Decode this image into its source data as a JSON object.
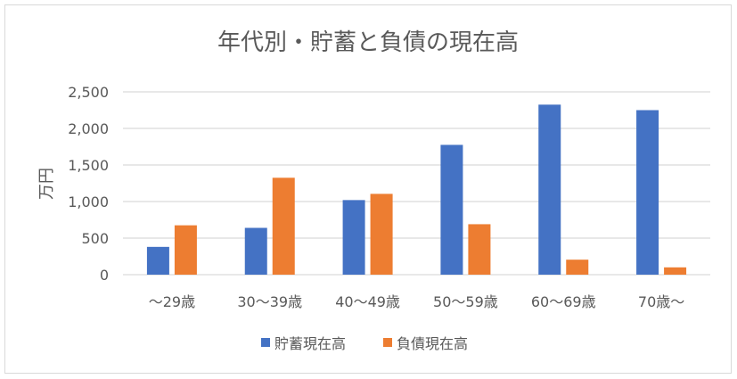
{
  "chart_data": {
    "type": "bar",
    "title": "年代別・貯蓄と負債の現在高",
    "xlabel": "",
    "ylabel": "万円",
    "ylim": [
      0,
      2500
    ],
    "yticks": [
      0,
      500,
      1000,
      1500,
      2000,
      2500
    ],
    "ytick_labels": [
      "0",
      "500",
      "1,000",
      "1,500",
      "2,000",
      "2,500"
    ],
    "grid": true,
    "legend": "bottom",
    "categories": [
      "～29歳",
      "30～39歳",
      "40～49歳",
      "50～59歳",
      "60～69歳",
      "70歳～"
    ],
    "series": [
      {
        "name": "貯蓄現在高",
        "color": "#4472c4",
        "values": [
          380,
          640,
          1020,
          1775,
          2325,
          2250
        ]
      },
      {
        "name": "負債現在高",
        "color": "#ed7d31",
        "values": [
          675,
          1325,
          1105,
          690,
          205,
          100
        ]
      }
    ]
  }
}
